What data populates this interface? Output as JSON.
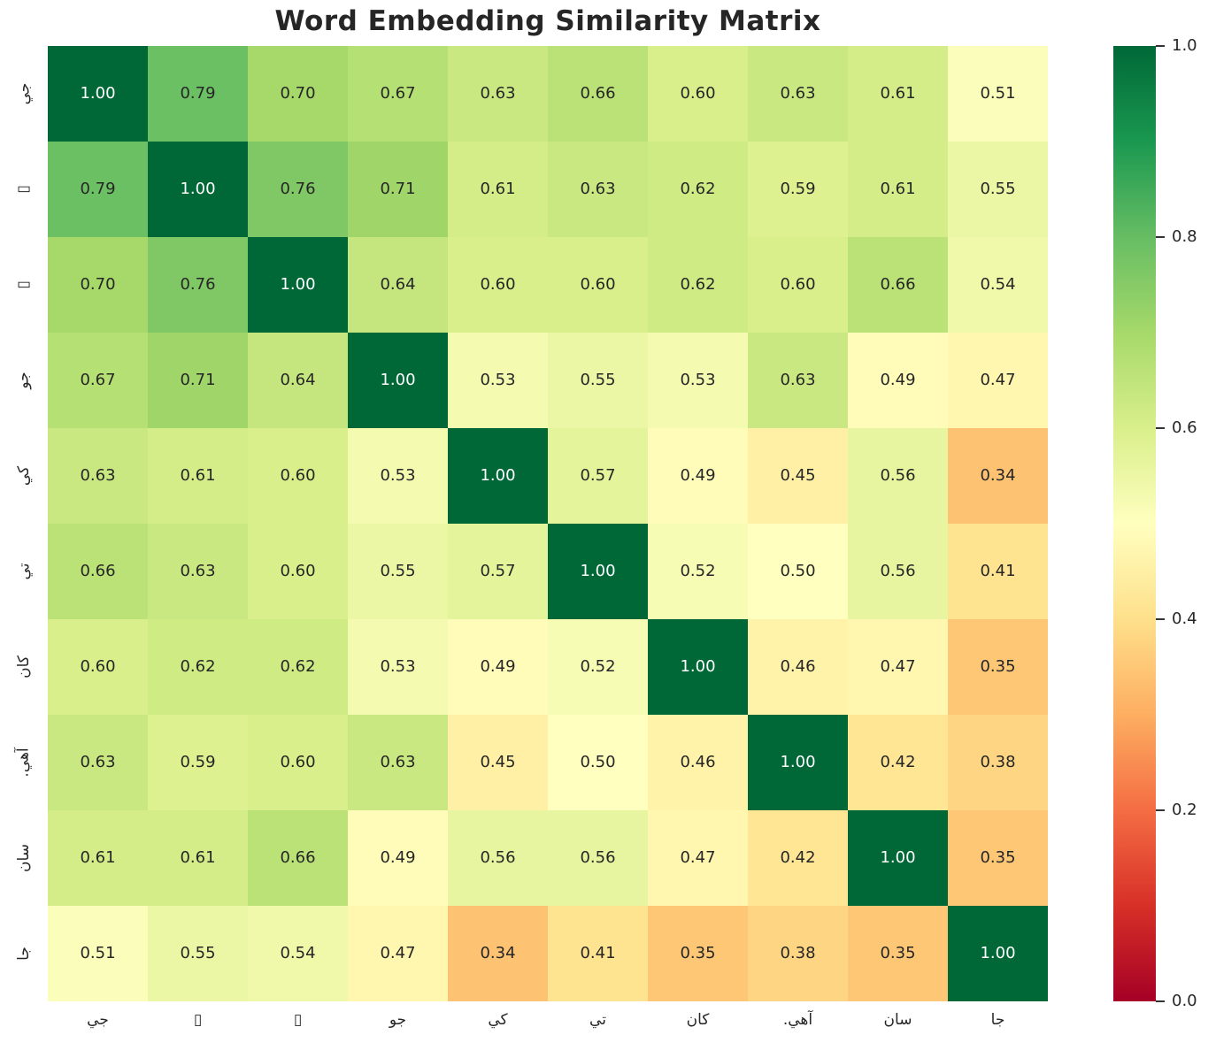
{
  "chart_data": {
    "type": "heatmap",
    "title": "Word Embedding Similarity Matrix",
    "labels": [
      "جي",
      "▯",
      "▯",
      "جو",
      "كي",
      "تي",
      "كان",
      "آهي.",
      "سان",
      "جا"
    ],
    "matrix": [
      [
        1.0,
        0.79,
        0.7,
        0.67,
        0.63,
        0.66,
        0.6,
        0.63,
        0.61,
        0.51
      ],
      [
        0.79,
        1.0,
        0.76,
        0.71,
        0.61,
        0.63,
        0.62,
        0.59,
        0.61,
        0.55
      ],
      [
        0.7,
        0.76,
        1.0,
        0.64,
        0.6,
        0.6,
        0.62,
        0.6,
        0.66,
        0.54
      ],
      [
        0.67,
        0.71,
        0.64,
        1.0,
        0.53,
        0.55,
        0.53,
        0.63,
        0.49,
        0.47
      ],
      [
        0.63,
        0.61,
        0.6,
        0.53,
        1.0,
        0.57,
        0.49,
        0.45,
        0.56,
        0.34
      ],
      [
        0.66,
        0.63,
        0.6,
        0.55,
        0.57,
        1.0,
        0.52,
        0.5,
        0.56,
        0.41
      ],
      [
        0.6,
        0.62,
        0.62,
        0.53,
        0.49,
        0.52,
        1.0,
        0.46,
        0.47,
        0.35
      ],
      [
        0.63,
        0.59,
        0.6,
        0.63,
        0.45,
        0.5,
        0.46,
        1.0,
        0.42,
        0.38
      ],
      [
        0.61,
        0.61,
        0.66,
        0.49,
        0.56,
        0.56,
        0.47,
        0.42,
        1.0,
        0.35
      ],
      [
        0.51,
        0.55,
        0.54,
        0.47,
        0.34,
        0.41,
        0.35,
        0.38,
        0.35,
        1.0
      ]
    ],
    "annotation_format": ".2f",
    "value_range": [
      0,
      1
    ],
    "grid": false,
    "colormap": {
      "name": "RdYlGn",
      "stops": [
        {
          "v": 0.0,
          "c": "#a50026"
        },
        {
          "v": 0.1,
          "c": "#d73027"
        },
        {
          "v": 0.2,
          "c": "#f46d43"
        },
        {
          "v": 0.3,
          "c": "#fdae61"
        },
        {
          "v": 0.4,
          "c": "#fee08b"
        },
        {
          "v": 0.5,
          "c": "#ffffbf"
        },
        {
          "v": 0.6,
          "c": "#d9ef8b"
        },
        {
          "v": 0.7,
          "c": "#a6d96a"
        },
        {
          "v": 0.8,
          "c": "#66bd63"
        },
        {
          "v": 0.9,
          "c": "#1a9850"
        },
        {
          "v": 1.0,
          "c": "#006837"
        }
      ]
    },
    "colorbar": {
      "position": "right",
      "min": 0.0,
      "max": 1.0,
      "ticks": [
        {
          "label": "1.0",
          "value": 1.0
        },
        {
          "label": "0.8",
          "value": 0.8
        },
        {
          "label": "0.6",
          "value": 0.6
        },
        {
          "label": "0.4",
          "value": 0.4
        },
        {
          "label": "0.2",
          "value": 0.2
        },
        {
          "label": "0.0",
          "value": 0.0
        }
      ]
    },
    "colors": {
      "title": "#262626",
      "tick_labels": "#262626",
      "annotation_dark": "#262626",
      "annotation_light": "#ffffff",
      "background": "#ffffff"
    }
  }
}
